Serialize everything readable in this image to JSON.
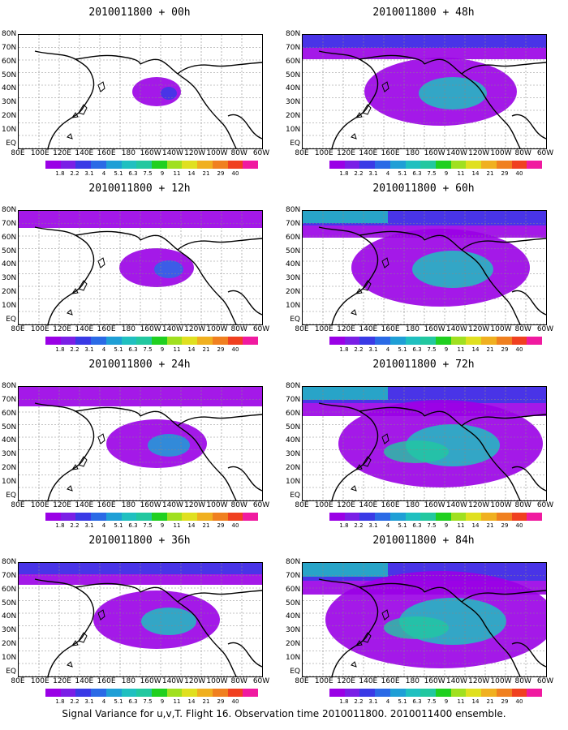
{
  "caption": "Signal Variance for u,v,T. Flight 16. Observation time 2010011800. 2010011400 ensemble.",
  "colorbar": {
    "labels": [
      "1.8",
      "2.2",
      "3.1",
      "4",
      "5.1",
      "6.3",
      "7.5",
      "9",
      "11",
      "14",
      "21",
      "29",
      "40"
    ],
    "colors": [
      "#9a00e6",
      "#7a1fe6",
      "#3a3ae6",
      "#2a6ae6",
      "#1f9fd6",
      "#20c0c0",
      "#22c8a0",
      "#20d020",
      "#a0e020",
      "#e0e020",
      "#f0b020",
      "#f08020",
      "#f04020",
      "#f01aa0"
    ]
  },
  "lat_labels": [
    "80N",
    "70N",
    "60N",
    "50N",
    "40N",
    "30N",
    "20N",
    "10N",
    "EQ"
  ],
  "lon_labels": [
    "80E",
    "100E",
    "120E",
    "140E",
    "160E",
    "180",
    "160W",
    "140W",
    "120W",
    "100W",
    "80W",
    "60W"
  ],
  "panels": [
    {
      "title": "2010011800 + 00h",
      "intensity": 0
    },
    {
      "title": "2010011800 + 12h",
      "intensity": 1
    },
    {
      "title": "2010011800 + 24h",
      "intensity": 2
    },
    {
      "title": "2010011800 + 36h",
      "intensity": 3
    },
    {
      "title": "2010011800 + 48h",
      "intensity": 4
    },
    {
      "title": "2010011800 + 60h",
      "intensity": 5
    },
    {
      "title": "2010011800 + 72h",
      "intensity": 6
    },
    {
      "title": "2010011800 + 84h",
      "intensity": 7
    }
  ]
}
